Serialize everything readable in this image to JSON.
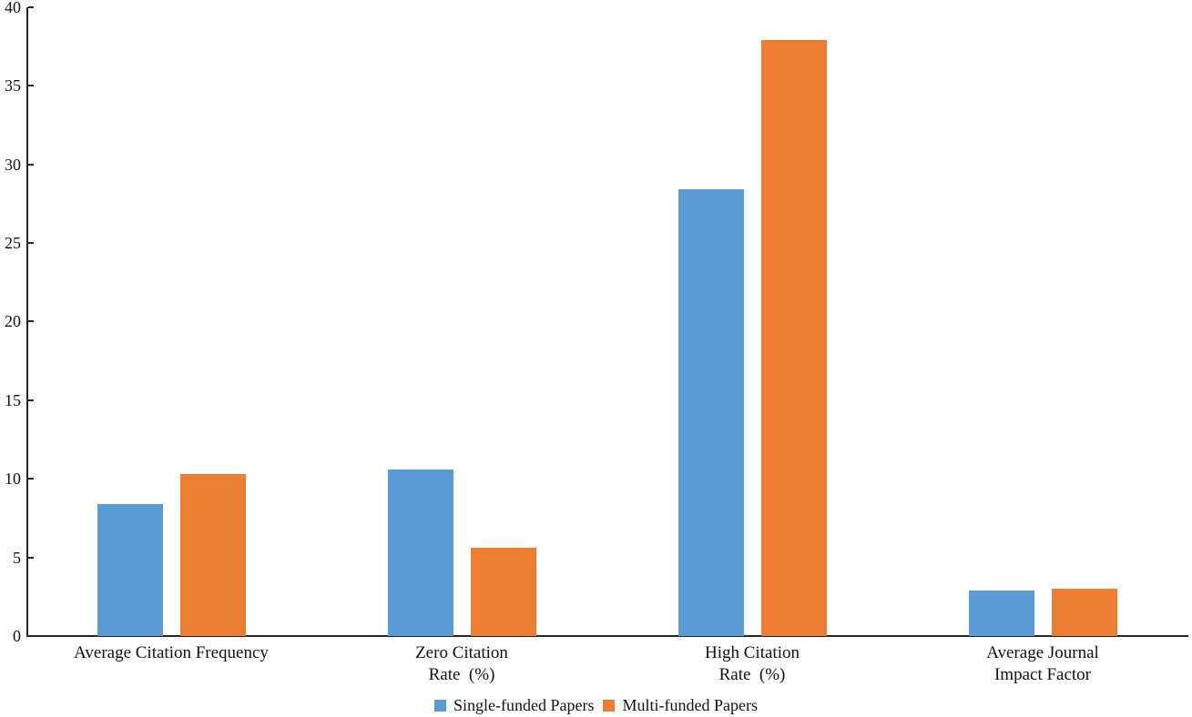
{
  "chart_data": {
    "type": "bar",
    "title": "",
    "xlabel": "",
    "ylabel": "",
    "categories": [
      {
        "lines": [
          "Average Citation Frequency"
        ]
      },
      {
        "lines": [
          "Zero Citation",
          "Rate  (%)"
        ]
      },
      {
        "lines": [
          "High Citation",
          "Rate  (%)"
        ]
      },
      {
        "lines": [
          "Average Journal",
          "Impact Factor"
        ]
      }
    ],
    "series": [
      {
        "name": "Single-funded Papers",
        "color": "#5B9BD5",
        "values": [
          8.4,
          10.6,
          28.4,
          2.9
        ]
      },
      {
        "name": "Multi-funded Papers",
        "color": "#ED7D31",
        "values": [
          10.3,
          5.6,
          37.9,
          3.0
        ]
      }
    ],
    "ylim": [
      0,
      40
    ],
    "yticks": [
      0,
      5,
      10,
      15,
      20,
      25,
      30,
      35,
      40
    ],
    "grid": false,
    "legend_position": "bottom-center",
    "axis_color": "#262626",
    "text_color": "#111111"
  }
}
